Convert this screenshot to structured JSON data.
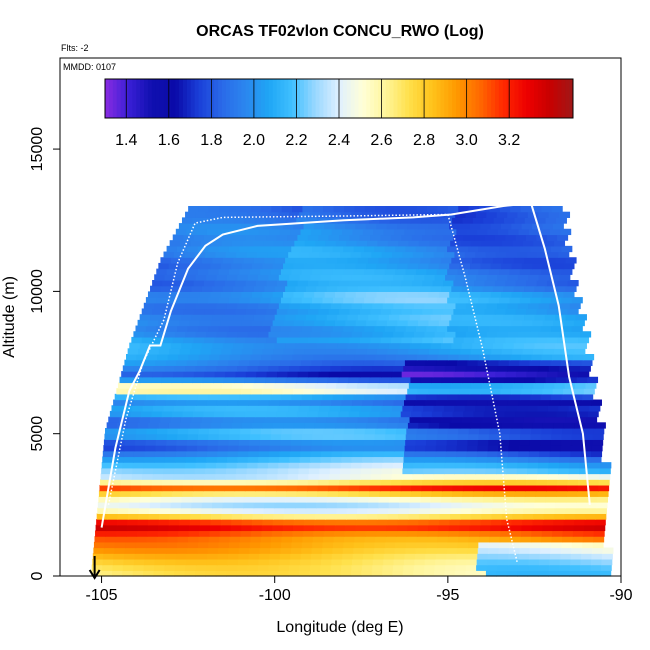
{
  "chart_data": {
    "type": "heatmap",
    "title": "ORCAS TF02vlon CONCU_RWO (Log)",
    "subtitle_flights": "Flts: -2",
    "subtitle_date": "MMDD: 0107",
    "xlabel": "Longitude (deg E)",
    "ylabel": "Altitude (m)",
    "xlim": [
      -106.2,
      -90
    ],
    "ylim": [
      0,
      18200
    ],
    "xticks": [
      -105,
      -100,
      -95,
      -90
    ],
    "xtick_labels": [
      "-105",
      "-100",
      "-95",
      "-90"
    ],
    "yticks": [
      0,
      5000,
      10000,
      15000
    ],
    "ytick_labels": [
      "0",
      "5000",
      "10000",
      "15000"
    ],
    "colorbar": {
      "range": [
        1.3,
        3.5
      ],
      "ticks": [
        1.4,
        1.6,
        1.8,
        2.0,
        2.2,
        2.4,
        2.6,
        2.8,
        3.0,
        3.2
      ],
      "tick_labels": [
        "1.4",
        "1.6",
        "1.8",
        "2.0",
        "2.2",
        "2.4",
        "2.6",
        "2.8",
        "3.0",
        "3.2"
      ],
      "colors": [
        "#8a2be2",
        "#3a1fd6",
        "#1010b0",
        "#0a0aa8",
        "#1a3ed8",
        "#2a6ae8",
        "#2b86ee",
        "#1fa6f5",
        "#40c0ff",
        "#9ad8ff",
        "#dff0ff",
        "#ffffd8",
        "#fff59a",
        "#ffe04a",
        "#ffc21a",
        "#ff9a00",
        "#ff6a00",
        "#ff2a00",
        "#ee0000",
        "#c80000",
        "#a01818"
      ]
    },
    "data_xrange": [
      -105.3,
      -90.5
    ],
    "altitude_profile_value": [
      {
        "alt": 200,
        "value": 2.65
      },
      {
        "alt": 600,
        "value": 2.75
      },
      {
        "alt": 1000,
        "value": 2.9
      },
      {
        "alt": 1400,
        "value": 3.0
      },
      {
        "alt": 1800,
        "value": 3.35
      },
      {
        "alt": 2200,
        "value": 2.55
      },
      {
        "alt": 2500,
        "value": 2.4
      },
      {
        "alt": 2800,
        "value": 2.6
      },
      {
        "alt": 3100,
        "value": 3.15
      },
      {
        "alt": 3400,
        "value": 2.45
      },
      {
        "alt": 3800,
        "value": 2.35
      },
      {
        "alt": 4200,
        "value": 2.1
      },
      {
        "alt": 4600,
        "value": 1.8
      },
      {
        "alt": 5000,
        "value": 2.2
      },
      {
        "alt": 5400,
        "value": 1.8
      },
      {
        "alt": 5800,
        "value": 2.1
      },
      {
        "alt": 6200,
        "value": 1.85
      },
      {
        "alt": 6600,
        "value": 2.7
      },
      {
        "alt": 7000,
        "value": 1.65
      },
      {
        "alt": 7400,
        "value": 1.9
      },
      {
        "alt": 7800,
        "value": 2.05
      },
      {
        "alt": 8200,
        "value": 2.1
      },
      {
        "alt": 8600,
        "value": 1.95
      },
      {
        "alt": 9000,
        "value": 2.05
      },
      {
        "alt": 9400,
        "value": 1.95
      },
      {
        "alt": 9800,
        "value": 2.1
      },
      {
        "alt": 10200,
        "value": 1.9
      },
      {
        "alt": 10600,
        "value": 1.95
      },
      {
        "alt": 11000,
        "value": 1.85
      },
      {
        "alt": 11400,
        "value": 1.95
      },
      {
        "alt": 11800,
        "value": 1.85
      },
      {
        "alt": 12200,
        "value": 1.9
      },
      {
        "alt": 12600,
        "value": 1.8
      }
    ],
    "west_edge": [
      {
        "alt": 0,
        "lon": -105.3
      },
      {
        "alt": 5000,
        "lon": -104.9
      },
      {
        "alt": 8000,
        "lon": -104.2
      },
      {
        "alt": 11000,
        "lon": -103.3
      },
      {
        "alt": 12800,
        "lon": -102.5
      }
    ],
    "east_edge": [
      {
        "alt": 0,
        "lon": -90.5
      },
      {
        "alt": 4000,
        "lon": -90.6
      },
      {
        "alt": 8000,
        "lon": -91.1
      },
      {
        "alt": 11000,
        "lon": -91.6
      },
      {
        "alt": 13000,
        "lon": -91.8
      }
    ],
    "flight_track_solid": [
      {
        "lon": -105.0,
        "alt": 1700
      },
      {
        "lon": -104.6,
        "alt": 4500
      },
      {
        "lon": -104.2,
        "alt": 6500
      },
      {
        "lon": -103.9,
        "alt": 7200
      },
      {
        "lon": -103.6,
        "alt": 8100
      },
      {
        "lon": -103.3,
        "alt": 8100
      },
      {
        "lon": -103.0,
        "alt": 9300
      },
      {
        "lon": -102.5,
        "alt": 10800
      },
      {
        "lon": -102.0,
        "alt": 11600
      },
      {
        "lon": -101.5,
        "alt": 12000
      },
      {
        "lon": -100.5,
        "alt": 12300
      },
      {
        "lon": -98.0,
        "alt": 12500
      },
      {
        "lon": -96.0,
        "alt": 12600
      },
      {
        "lon": -94.9,
        "alt": 12700
      },
      {
        "lon": -93.4,
        "alt": 13000
      },
      {
        "lon": -92.6,
        "alt": 13100
      },
      {
        "lon": -92.2,
        "alt": 11500
      },
      {
        "lon": -91.8,
        "alt": 9500
      },
      {
        "lon": -91.5,
        "alt": 7000
      },
      {
        "lon": -91.1,
        "alt": 5000
      },
      {
        "lon": -90.9,
        "alt": 2500
      }
    ],
    "flight_track_dotted": [
      {
        "lon": -104.8,
        "alt": 2500
      },
      {
        "lon": -104.3,
        "alt": 5500
      },
      {
        "lon": -103.8,
        "alt": 7500
      },
      {
        "lon": -103.2,
        "alt": 9000
      },
      {
        "lon": -102.8,
        "alt": 11000
      },
      {
        "lon": -102.3,
        "alt": 12400
      },
      {
        "lon": -101.5,
        "alt": 12600
      },
      {
        "lon": -98.0,
        "alt": 12650
      },
      {
        "lon": -95.0,
        "alt": 12700
      },
      {
        "lon": -94.5,
        "alt": 10500
      },
      {
        "lon": -94.0,
        "alt": 8000
      },
      {
        "lon": -93.5,
        "alt": 5000
      },
      {
        "lon": -93.3,
        "alt": 2000
      },
      {
        "lon": -93.0,
        "alt": 500
      }
    ],
    "arrow_marker_lon": -105.2,
    "colors": {
      "frame": "#000000",
      "track": "#ffffff"
    }
  }
}
